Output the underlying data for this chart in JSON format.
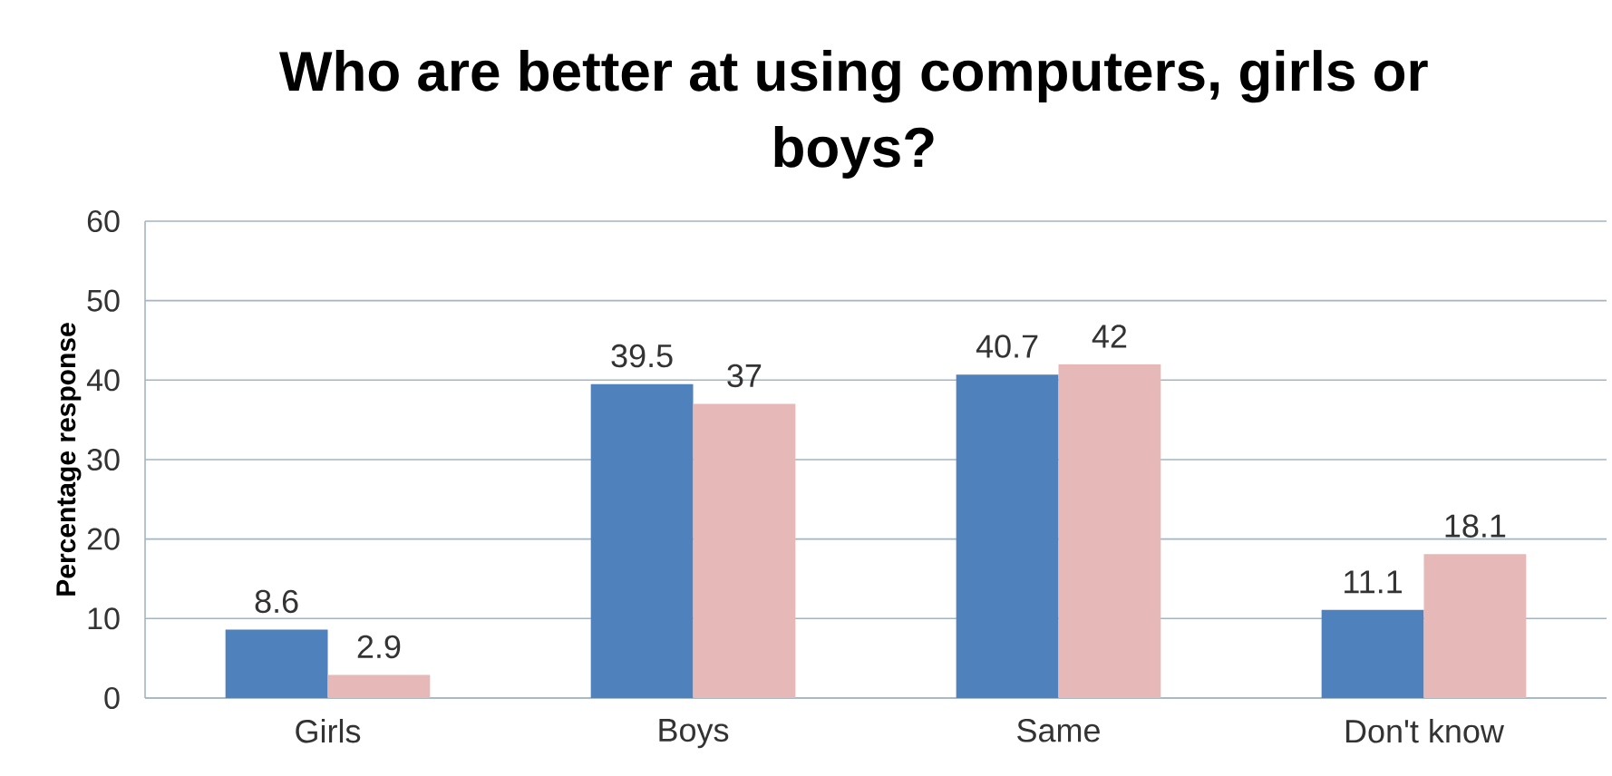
{
  "chart_data": {
    "type": "bar",
    "title": "Who are better at using computers, girls or boys?",
    "ylabel": "Percentage response",
    "categories": [
      "Girls",
      "Boys",
      "Same",
      "Don't know"
    ],
    "series": [
      {
        "color": "#4f81bd",
        "values": [
          8.6,
          39.5,
          40.7,
          11.1
        ]
      },
      {
        "color": "#e6b9b8",
        "values": [
          2.9,
          37,
          42,
          18.1
        ]
      }
    ],
    "ylim": [
      0,
      60
    ],
    "yticks": [
      0,
      10,
      20,
      30,
      40,
      50,
      60
    ],
    "grid": "y",
    "data_labels": true
  }
}
